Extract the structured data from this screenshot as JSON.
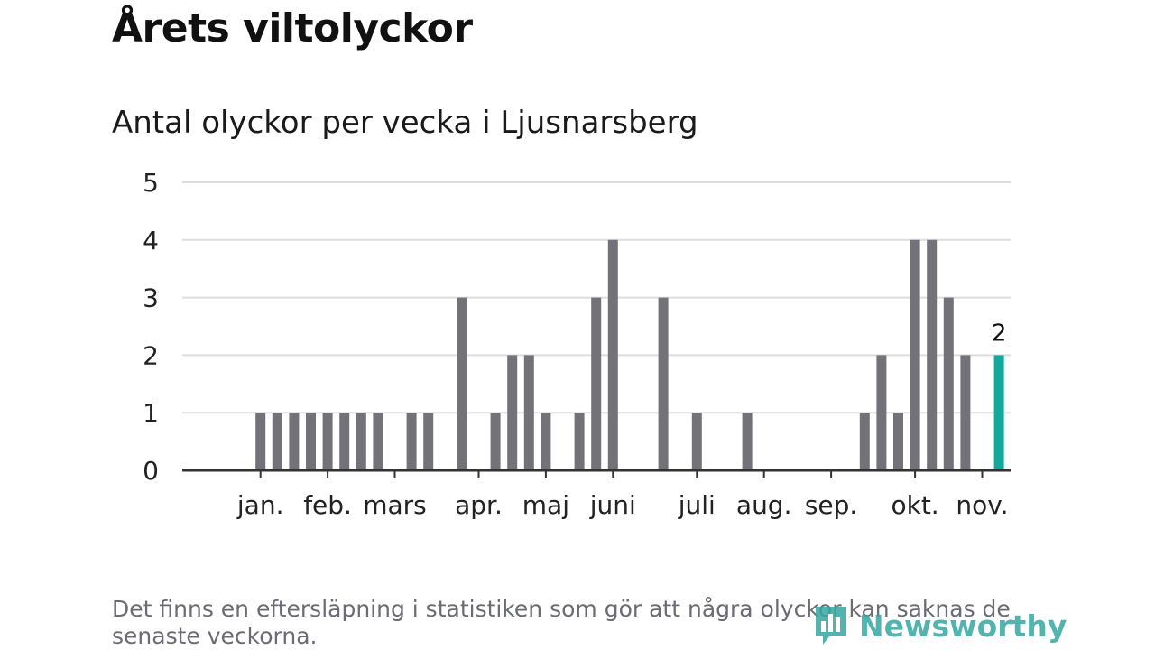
{
  "title": "Årets viltolyckor",
  "subtitle": "Antal olyckor per vecka i Ljusnarsberg",
  "footnote": "Det finns en eftersläpning i statistiken som gör att några olyckor kan saknas de senaste veckorna.",
  "brand": {
    "name": "Newsworthy",
    "icon": "bar-chart-logo-icon",
    "color": "#35a8a0"
  },
  "chart_data": {
    "type": "bar",
    "title": "Antal olyckor per vecka i Ljusnarsberg",
    "xlabel": "",
    "ylabel": "",
    "ylim": [
      0,
      5
    ],
    "yticks": [
      0,
      1,
      2,
      3,
      4,
      5
    ],
    "grid": true,
    "weeks": [
      1,
      2,
      3,
      4,
      5,
      6,
      7,
      8,
      9,
      10,
      11,
      12,
      13,
      14,
      15,
      16,
      17,
      18,
      19,
      20,
      21,
      22,
      23,
      24,
      25,
      26,
      27,
      28,
      29,
      30,
      31,
      32,
      33,
      34,
      35,
      36,
      37,
      38,
      39,
      40,
      41,
      42,
      43,
      44,
      45,
      46,
      47,
      48,
      49,
      50,
      51
    ],
    "values": [
      0,
      0,
      1,
      1,
      1,
      1,
      1,
      1,
      1,
      1,
      0,
      1,
      1,
      0,
      3,
      0,
      1,
      2,
      2,
      1,
      0,
      1,
      3,
      4,
      0,
      0,
      3,
      0,
      1,
      0,
      0,
      1,
      0,
      0,
      0,
      0,
      0,
      0,
      1,
      2,
      1,
      4,
      4,
      3,
      2,
      0,
      2,
      0,
      0,
      0,
      0
    ],
    "highlight_week": 47,
    "highlight_label": "2",
    "months": [
      {
        "label": "jan.",
        "week": 3
      },
      {
        "label": "feb.",
        "week": 7
      },
      {
        "label": "mars",
        "week": 11
      },
      {
        "label": "apr.",
        "week": 16
      },
      {
        "label": "maj",
        "week": 20
      },
      {
        "label": "juni",
        "week": 24
      },
      {
        "label": "juli",
        "week": 29
      },
      {
        "label": "aug.",
        "week": 33
      },
      {
        "label": "sep.",
        "week": 37
      },
      {
        "label": "okt.",
        "week": 42
      },
      {
        "label": "nov.",
        "week": 46
      }
    ],
    "colors": {
      "bar": "#737278",
      "highlight": "#12a89e",
      "grid": "#dddddd",
      "axis": "#333333",
      "text": "#222222"
    }
  }
}
